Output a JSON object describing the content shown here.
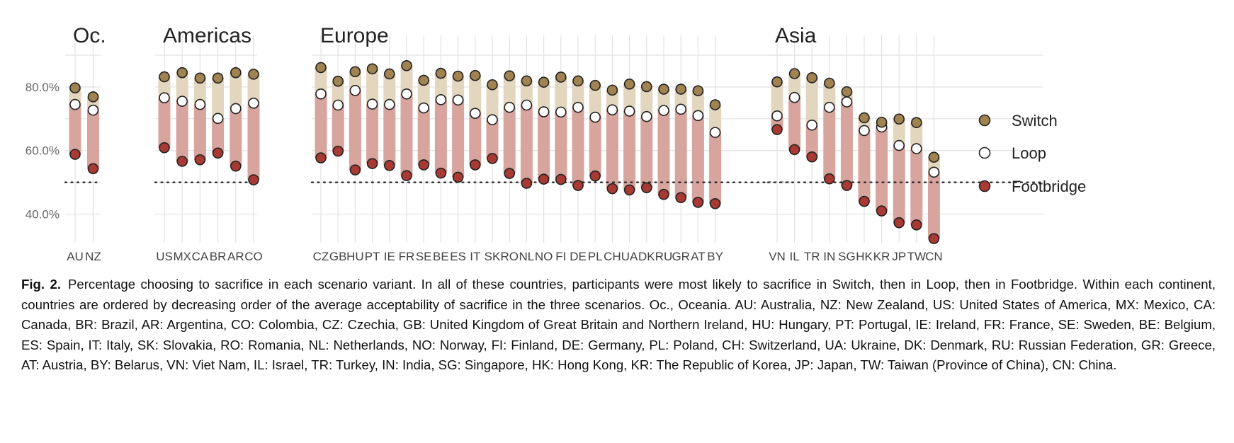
{
  "caption": {
    "lead": "Fig. 2.",
    "text": "Percentage choosing to sacrifice in each scenario variant. In all of these countries, participants were most likely to sacrifice in Switch, then in Loop, then in Footbridge. Within each continent, countries are ordered by decreasing order of the average acceptability of sacrifice in the three scenarios. Oc., Oceania. AU: Australia, NZ: New Zealand, US: United States of America, MX: Mexico, CA: Canada, BR: Brazil, AR: Argentina, CO: Colombia, CZ: Czechia, GB: United Kingdom of Great Britain and Northern Ireland, HU: Hungary, PT: Portugal, IE: Ireland, FR: France, SE: Sweden, BE: Belgium, ES: Spain, IT: Italy, SK: Slovakia, RO: Romania, NL: Netherlands, NO: Norway, FI: Finland, DE: Germany, PL: Poland, CH: Switzerland, UA: Ukraine, DK: Denmark, RU: Russian Federation, GR: Greece, AT: Austria, BY: Belarus, VN: Viet Nam, IL: Israel, TR: Turkey, IN: India, SG: Singapore, HK: Hong Kong, KR: The Republic of Korea, JP: Japan, TW: Taiwan (Province of China), CN: China."
  },
  "colors": {
    "switch": "#a08350",
    "loop": "#ffffff",
    "footbridge": "#a83a33",
    "band_upper": "#e3d6bf",
    "band_lower": "#d7a49e",
    "grid": "#e2e2e2",
    "reference_line": "#222222"
  },
  "chart_data": {
    "type": "dot-range",
    "y_ticks": [
      "80.0%",
      "60.0%",
      "40.0%"
    ],
    "y_tick_values": [
      80,
      60,
      40
    ],
    "ylim": [
      31,
      94
    ],
    "reference_line": 50,
    "grid": true,
    "legend_position": "right",
    "legend": [
      {
        "key": "switch",
        "label": "Switch"
      },
      {
        "key": "loop",
        "label": "Loop"
      },
      {
        "key": "footbridge",
        "label": "Footbridge"
      }
    ],
    "panels": [
      {
        "title": "Oc.",
        "categories": [
          "AU",
          "NZ"
        ],
        "series": [
          {
            "key": "switch",
            "values": [
              79.7,
              76.9
            ]
          },
          {
            "key": "loop",
            "values": [
              74.5,
              72.7
            ]
          },
          {
            "key": "footbridge",
            "values": [
              58.8,
              54.3
            ]
          }
        ]
      },
      {
        "title": "Americas",
        "categories": [
          "US",
          "MX",
          "CA",
          "BR",
          "AR",
          "CO"
        ],
        "series": [
          {
            "key": "switch",
            "values": [
              83.2,
              84.5,
              82.8,
              82.8,
              84.5,
              84.0
            ]
          },
          {
            "key": "loop",
            "values": [
              76.6,
              75.5,
              74.5,
              70.1,
              73.2,
              74.9
            ]
          },
          {
            "key": "footbridge",
            "values": [
              60.9,
              56.6,
              57.1,
              59.2,
              55.1,
              50.8
            ]
          }
        ]
      },
      {
        "title": "Europe",
        "categories": [
          "CZ",
          "GB",
          "HU",
          "PT",
          "IE",
          "FR",
          "SE",
          "BE",
          "ES",
          "IT",
          "SK",
          "RO",
          "NL",
          "NO",
          "FI",
          "DE",
          "PL",
          "CH",
          "UA",
          "DK",
          "RU",
          "GR",
          "AT",
          "BY"
        ],
        "series": [
          {
            "key": "switch",
            "values": [
              86.1,
              81.8,
              84.8,
              85.7,
              84.1,
              86.7,
              82.1,
              84.3,
              83.4,
              83.6,
              80.7,
              83.5,
              81.9,
              81.5,
              83.1,
              81.9,
              80.5,
              79.0,
              80.9,
              80.1,
              79.3,
              79.3,
              78.8,
              74.4
            ]
          },
          {
            "key": "loop",
            "values": [
              77.8,
              74.3,
              78.9,
              74.6,
              74.5,
              77.8,
              73.4,
              76.0,
              75.9,
              71.7,
              69.7,
              73.6,
              74.3,
              72.2,
              72.1,
              73.6,
              70.5,
              72.8,
              72.4,
              70.7,
              72.6,
              73.0,
              71.0,
              65.7
            ]
          },
          {
            "key": "footbridge",
            "values": [
              57.7,
              59.8,
              53.9,
              55.9,
              55.3,
              52.1,
              55.5,
              52.9,
              51.6,
              55.5,
              57.5,
              52.8,
              49.7,
              51.0,
              50.9,
              49.0,
              52.0,
              48.0,
              47.6,
              48.3,
              46.2,
              45.2,
              43.7,
              43.3
            ]
          }
        ]
      },
      {
        "title": "Asia",
        "categories": [
          "VN",
          "IL",
          "TR",
          "IN",
          "SG",
          "HK",
          "KR",
          "JP",
          "TW",
          "CN"
        ],
        "series": [
          {
            "key": "switch",
            "values": [
              81.6,
              84.2,
              82.9,
              81.2,
              78.5,
              70.3,
              68.9,
              69.9,
              68.8,
              57.9
            ]
          },
          {
            "key": "loop",
            "values": [
              70.9,
              76.7,
              68.0,
              73.6,
              75.3,
              66.3,
              67.4,
              61.6,
              60.6,
              53.2
            ]
          },
          {
            "key": "footbridge",
            "values": [
              66.6,
              60.3,
              58.0,
              51.1,
              49.0,
              44.0,
              41.0,
              37.3,
              36.6,
              32.3
            ]
          }
        ]
      }
    ]
  }
}
